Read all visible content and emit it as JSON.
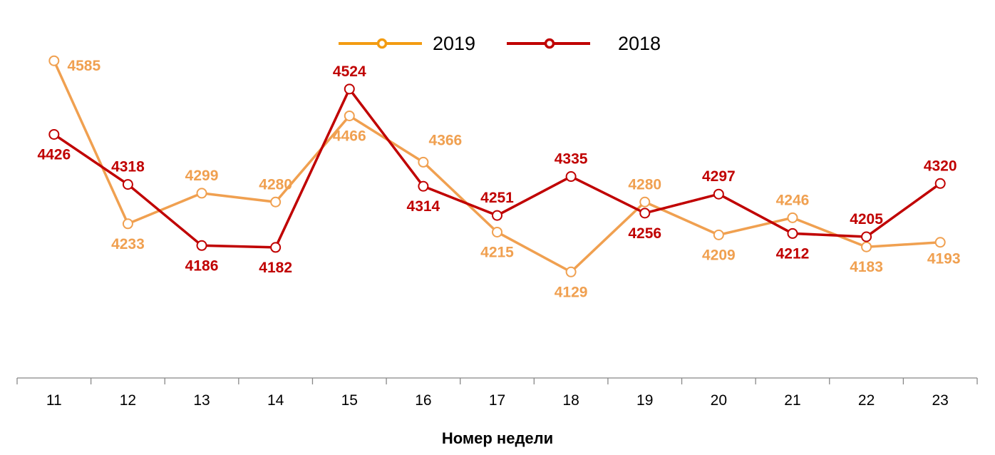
{
  "chart_data": {
    "type": "line",
    "title": "",
    "xlabel": "Номер недели",
    "ylabel": "",
    "categories": [
      "11",
      "12",
      "13",
      "14",
      "15",
      "16",
      "17",
      "18",
      "19",
      "20",
      "21",
      "22",
      "23"
    ],
    "ylim": [
      3900,
      4650
    ],
    "grid": false,
    "legend_placement": "top",
    "series": [
      {
        "name": "2019",
        "color": "#F0A050",
        "legend_color": "#F39C12",
        "values": [
          4585,
          4233,
          4299,
          4280,
          4466,
          4366,
          4215,
          4129,
          4280,
          4209,
          4246,
          4183,
          4193
        ]
      },
      {
        "name": "2018",
        "color": "#C00000",
        "legend_color": "#C00000",
        "values": [
          4426,
          4318,
          4186,
          4182,
          4524,
          4314,
          4251,
          4335,
          4256,
          4297,
          4212,
          4205,
          4320
        ]
      }
    ]
  }
}
